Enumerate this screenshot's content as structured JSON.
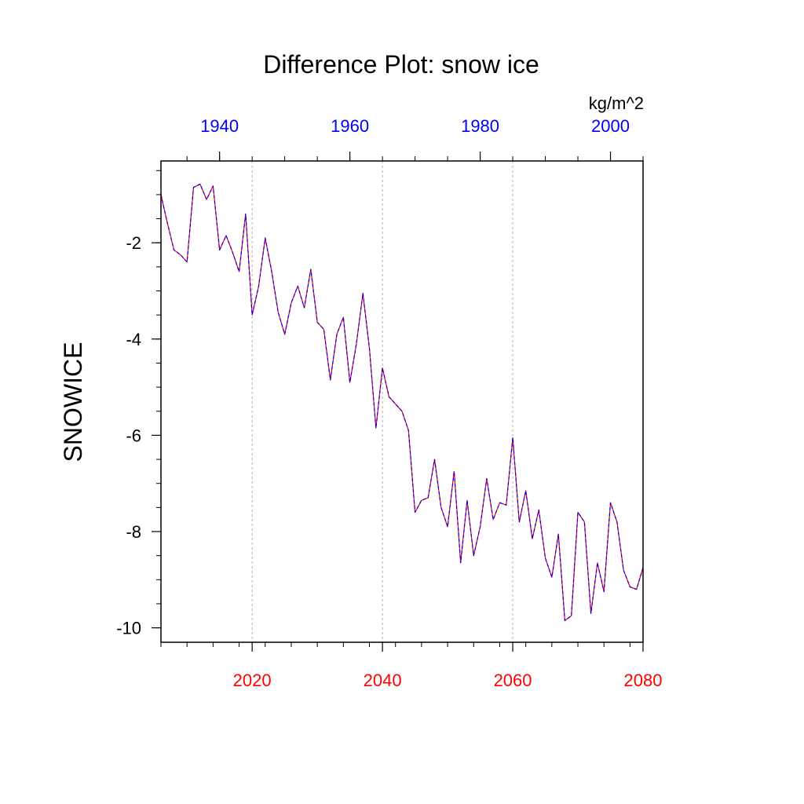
{
  "chart_data": {
    "type": "line",
    "title": "Difference Plot: snow ice",
    "units": "kg/m^2",
    "ylabel": "SNOWICE",
    "xlabel": "",
    "bottom_axis": {
      "color": "#ff0000",
      "range": [
        2006,
        2080
      ],
      "ticks": [
        2020,
        2040,
        2060,
        2080
      ],
      "tick_labels": [
        "2020",
        "2040",
        "2060",
        "2080"
      ],
      "minor_step": 4
    },
    "top_axis": {
      "color": "#0000ff",
      "range": [
        1931,
        2005
      ],
      "ticks": [
        1940,
        1960,
        1980,
        2000
      ],
      "tick_labels": [
        "1940",
        "1960",
        "1980",
        "2000"
      ],
      "minor_step": 5
    },
    "y_axis": {
      "range": [
        -10.3,
        -0.3
      ],
      "ticks": [
        -10,
        -8,
        -6,
        -4,
        -2
      ],
      "tick_labels": [
        "-10",
        "-8",
        "-6",
        "-4",
        "-2"
      ],
      "minor_step": 0.5
    },
    "grid": "vertical dashed at major ticks",
    "series": [
      {
        "color": "#ff0000",
        "style": "solid",
        "x": [
          2006,
          2007,
          2008,
          2009,
          2010,
          2011,
          2012,
          2013,
          2014,
          2015,
          2016,
          2017,
          2018,
          2019,
          2020,
          2021,
          2022,
          2023,
          2024,
          2025,
          2026,
          2027,
          2028,
          2029,
          2030,
          2031,
          2032,
          2033,
          2034,
          2035,
          2036,
          2037,
          2038,
          2039,
          2040,
          2041,
          2042,
          2043,
          2044,
          2045,
          2046,
          2047,
          2048,
          2049,
          2050,
          2051,
          2052,
          2053,
          2054,
          2055,
          2056,
          2057,
          2058,
          2059,
          2060,
          2061,
          2062,
          2063,
          2064,
          2065,
          2066,
          2067,
          2068,
          2069,
          2070,
          2071,
          2072,
          2073,
          2074,
          2075,
          2076,
          2077,
          2078,
          2079,
          2080
        ],
        "y": [
          -1.0,
          -1.6,
          -2.15,
          -2.25,
          -2.4,
          -0.85,
          -0.78,
          -1.1,
          -0.82,
          -2.15,
          -1.85,
          -2.2,
          -2.6,
          -1.4,
          -3.5,
          -2.9,
          -1.9,
          -2.6,
          -3.45,
          -3.9,
          -3.25,
          -2.9,
          -3.35,
          -2.55,
          -3.65,
          -3.8,
          -4.85,
          -3.9,
          -3.55,
          -4.9,
          -4.1,
          -3.05,
          -4.2,
          -5.85,
          -4.6,
          -5.2,
          -5.35,
          -5.5,
          -5.9,
          -7.6,
          -7.35,
          -7.3,
          -6.5,
          -7.5,
          -7.9,
          -6.75,
          -8.65,
          -7.35,
          -8.5,
          -7.9,
          -6.9,
          -7.75,
          -7.4,
          -7.45,
          -6.05,
          -7.8,
          -7.15,
          -8.15,
          -7.55,
          -8.55,
          -8.95,
          -8.05,
          -9.85,
          -9.75,
          -7.6,
          -7.8,
          -9.7,
          -8.65,
          -9.25,
          -7.4,
          -7.8,
          -8.8,
          -9.15,
          -9.2,
          -8.75
        ]
      },
      {
        "color": "#0000ff",
        "style": "dashed",
        "x": [
          2006,
          2007,
          2008,
          2009,
          2010,
          2011,
          2012,
          2013,
          2014,
          2015,
          2016,
          2017,
          2018,
          2019,
          2020,
          2021,
          2022,
          2023,
          2024,
          2025,
          2026,
          2027,
          2028,
          2029,
          2030,
          2031,
          2032,
          2033,
          2034,
          2035,
          2036,
          2037,
          2038,
          2039,
          2040,
          2041,
          2042,
          2043,
          2044,
          2045,
          2046,
          2047,
          2048,
          2049,
          2050,
          2051,
          2052,
          2053,
          2054,
          2055,
          2056,
          2057,
          2058,
          2059,
          2060,
          2061,
          2062,
          2063,
          2064,
          2065,
          2066,
          2067,
          2068,
          2069,
          2070,
          2071,
          2072,
          2073,
          2074,
          2075,
          2076,
          2077,
          2078,
          2079,
          2080
        ],
        "y": [
          -1.0,
          -1.6,
          -2.15,
          -2.25,
          -2.4,
          -0.85,
          -0.78,
          -1.1,
          -0.82,
          -2.15,
          -1.85,
          -2.2,
          -2.6,
          -1.4,
          -3.5,
          -2.9,
          -1.9,
          -2.6,
          -3.45,
          -3.9,
          -3.25,
          -2.9,
          -3.35,
          -2.55,
          -3.65,
          -3.8,
          -4.85,
          -3.9,
          -3.55,
          -4.9,
          -4.1,
          -3.05,
          -4.2,
          -5.85,
          -4.6,
          -5.2,
          -5.35,
          -5.5,
          -5.9,
          -7.6,
          -7.35,
          -7.3,
          -6.5,
          -7.5,
          -7.9,
          -6.75,
          -8.65,
          -7.35,
          -8.5,
          -7.9,
          -6.9,
          -7.75,
          -7.4,
          -7.45,
          -6.05,
          -7.8,
          -7.15,
          -8.15,
          -7.55,
          -8.55,
          -8.95,
          -8.05,
          -9.85,
          -9.75,
          -7.6,
          -7.8,
          -9.7,
          -8.65,
          -9.25,
          -7.4,
          -7.8,
          -8.8,
          -9.15,
          -9.2,
          -8.75
        ]
      }
    ]
  }
}
